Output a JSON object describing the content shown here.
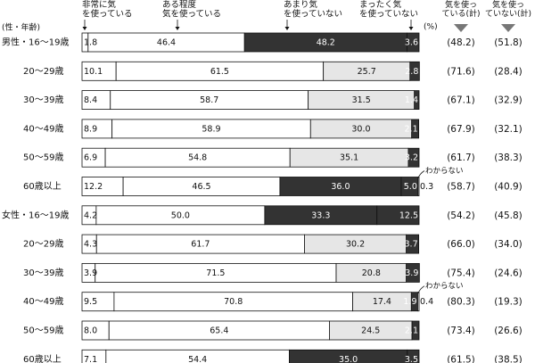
{
  "chart_data": {
    "type": "bar",
    "stacked": true,
    "orientation": "horizontal",
    "unit_label": "(%)",
    "group_header": "(性・年齢)",
    "categories": [
      "男性・16〜19歳",
      "20〜29歳",
      "30〜39歳",
      "40〜49歳",
      "50〜59歳",
      "60歳以上",
      "女性・16〜19歳",
      "20〜29歳",
      "30〜39歳",
      "40〜49歳",
      "50〜59歳",
      "60歳以上"
    ],
    "series": [
      {
        "name": "非常に気を使っている",
        "color": "#ffffff",
        "values": [
          1.8,
          10.1,
          8.4,
          8.9,
          6.9,
          12.2,
          4.2,
          4.3,
          3.9,
          9.5,
          8.0,
          7.1
        ]
      },
      {
        "name": "ある程度気を使っている",
        "color": "#ffffff",
        "values": [
          46.4,
          61.5,
          58.7,
          58.9,
          54.8,
          46.5,
          50.0,
          61.7,
          71.5,
          70.8,
          65.4,
          54.4
        ]
      },
      {
        "name": "あまり気を使っていない",
        "color": "#333333",
        "values": [
          48.2,
          25.7,
          31.5,
          30.0,
          35.1,
          36.0,
          33.3,
          30.2,
          20.8,
          17.4,
          24.5,
          35.0
        ]
      },
      {
        "name": "まったく気を使っていない",
        "color": "#333333",
        "values": [
          3.6,
          2.8,
          1.4,
          2.1,
          3.2,
          5.0,
          12.5,
          3.7,
          3.9,
          1.9,
          2.1,
          3.5
        ]
      },
      {
        "name": "わからない",
        "color": "#ffffff",
        "values": [
          0,
          0,
          0,
          0,
          0,
          0.3,
          0,
          0,
          0,
          0.4,
          0,
          0
        ]
      }
    ],
    "third_band_fill": [
      "dark",
      "light",
      "light",
      "light",
      "light",
      "dark",
      "dark",
      "light",
      "light",
      "light",
      "light",
      "dark"
    ],
    "unknown_label": "わからない",
    "summary_columns": [
      {
        "header": "気を使っている(計)",
        "values": [
          "(48.2)",
          "(71.6)",
          "(67.1)",
          "(67.9)",
          "(61.7)",
          "(58.7)",
          "(54.2)",
          "(66.0)",
          "(75.4)",
          "(80.3)",
          "(73.4)",
          "(61.5)"
        ]
      },
      {
        "header": "気を使っていない(計)",
        "values": [
          "(51.8)",
          "(28.4)",
          "(32.9)",
          "(32.1)",
          "(38.3)",
          "(40.9)",
          "(45.8)",
          "(34.0)",
          "(24.6)",
          "(19.3)",
          "(26.6)",
          "(38.5)"
        ]
      }
    ],
    "xlim": [
      0,
      100
    ],
    "colors": {
      "dark": "#333333",
      "light": "#e6e6e6",
      "white": "#ffffff",
      "ink": "#111111"
    }
  }
}
